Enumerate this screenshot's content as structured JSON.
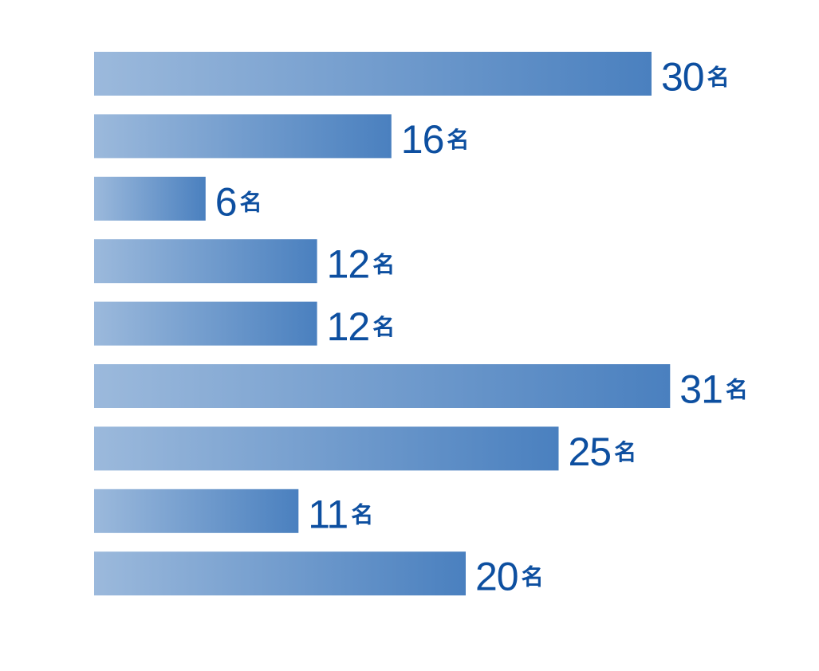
{
  "chart_data": {
    "type": "bar",
    "orientation": "horizontal",
    "values": [
      30,
      16,
      6,
      12,
      12,
      31,
      25,
      11,
      20
    ],
    "value_labels": [
      "30名",
      "16名",
      "6名",
      "12名",
      "12名",
      "31名",
      "25名",
      "11名",
      "20名"
    ],
    "color": "#4a80bf",
    "label_color": "#0d4fa0"
  }
}
